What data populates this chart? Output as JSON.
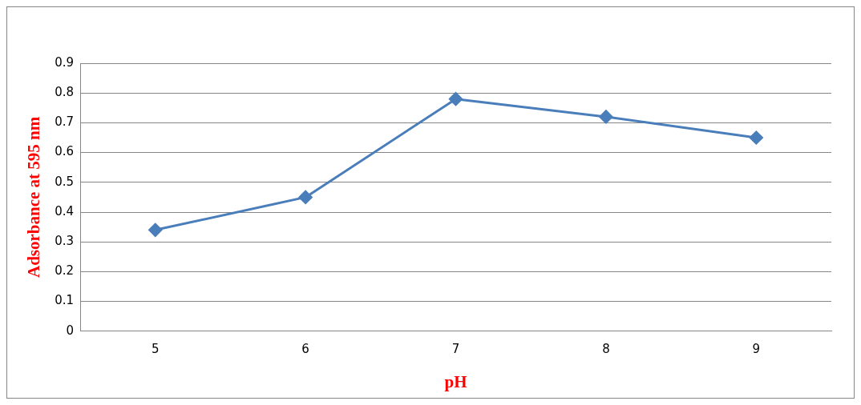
{
  "chart_data": {
    "type": "line",
    "xlabel": "pH",
    "ylabel": "Adsorbance at 595 nm",
    "categories": [
      "5",
      "6",
      "7",
      "8",
      "9"
    ],
    "series": [
      {
        "color": "#4a7ebb",
        "values": [
          0.34,
          0.45,
          0.78,
          0.72,
          0.65
        ]
      }
    ],
    "ylim": [
      0,
      0.9
    ],
    "yticks": [
      0,
      0.1,
      0.2,
      0.3,
      0.4,
      0.5,
      0.6,
      0.7,
      0.8,
      0.9
    ],
    "grid": "y",
    "legend": false,
    "marker": "diamond",
    "line_style": "solid"
  }
}
